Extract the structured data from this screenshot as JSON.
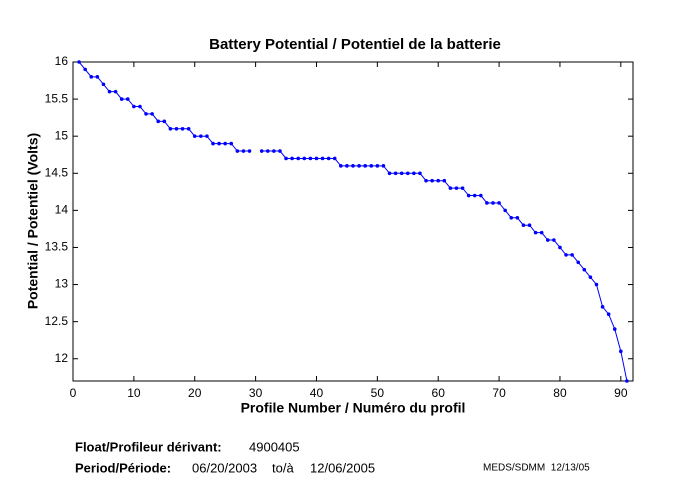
{
  "chart_data": {
    "type": "line",
    "title": "Battery Potential / Potentiel de la batterie",
    "xlabel": "Profile Number / Numéro du profil",
    "ylabel": "Potential / Potentiel (Volts)",
    "color": "#0000ff",
    "xlim": [
      0,
      92
    ],
    "xticks": [
      0,
      10,
      20,
      30,
      40,
      50,
      60,
      70,
      80,
      90
    ],
    "ylim": [
      11.7,
      16
    ],
    "yticks": [
      12,
      12.5,
      13,
      13.5,
      14,
      14.5,
      15,
      15.5,
      16
    ],
    "x": [
      1,
      2,
      3,
      4,
      5,
      6,
      7,
      8,
      9,
      10,
      11,
      12,
      13,
      14,
      15,
      16,
      17,
      18,
      19,
      20,
      21,
      22,
      23,
      24,
      25,
      26,
      27,
      28,
      29,
      30,
      31,
      32,
      33,
      34,
      35,
      36,
      37,
      38,
      39,
      40,
      41,
      42,
      43,
      44,
      45,
      46,
      47,
      48,
      49,
      50,
      51,
      52,
      53,
      54,
      55,
      56,
      57,
      58,
      59,
      60,
      61,
      62,
      63,
      64,
      65,
      66,
      67,
      68,
      69,
      70,
      71,
      72,
      73,
      74,
      75,
      76,
      77,
      78,
      79,
      80,
      81,
      82,
      83,
      84,
      85,
      86,
      87,
      88,
      89,
      90,
      91
    ],
    "values": [
      16.0,
      15.9,
      15.8,
      15.8,
      15.7,
      15.6,
      15.6,
      15.5,
      15.5,
      15.4,
      15.4,
      15.3,
      15.3,
      15.2,
      15.2,
      15.1,
      15.1,
      15.1,
      15.1,
      15.0,
      15.0,
      15.0,
      14.9,
      14.9,
      14.9,
      14.9,
      14.8,
      14.8,
      14.8,
      null,
      14.8,
      14.8,
      14.8,
      14.8,
      14.7,
      14.7,
      14.7,
      14.7,
      14.7,
      14.7,
      14.7,
      14.7,
      14.7,
      14.6,
      14.6,
      14.6,
      14.6,
      14.6,
      14.6,
      14.6,
      14.6,
      14.5,
      14.5,
      14.5,
      14.5,
      14.5,
      14.5,
      14.4,
      14.4,
      14.4,
      14.4,
      14.3,
      14.3,
      14.3,
      14.2,
      14.2,
      14.2,
      14.1,
      14.1,
      14.1,
      14.0,
      13.9,
      13.9,
      13.8,
      13.8,
      13.7,
      13.7,
      13.6,
      13.6,
      13.5,
      13.4,
      13.4,
      13.3,
      13.2,
      13.1,
      13.0,
      12.7,
      12.6,
      12.4,
      12.1,
      11.7
    ]
  },
  "footer": {
    "float_label": "Float/Profileur dérivant:",
    "float_id": "4900405",
    "period_label": "Period/Période:",
    "start": "06/20/2003",
    "to": "to/à",
    "end": "12/06/2005",
    "credit": "MEDS/SDMM  12/13/05"
  }
}
